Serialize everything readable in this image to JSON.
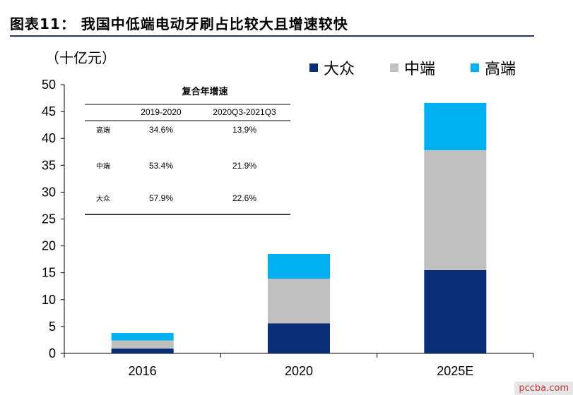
{
  "title": "图表11：  我国中低端电动牙刷占比较大且增速较快",
  "unit_label": "（十亿元）",
  "legend": [
    {
      "label": "大众",
      "color": "#0a2e78"
    },
    {
      "label": "中端",
      "color": "#c0c0c0"
    },
    {
      "label": "高端",
      "color": "#00b0f0"
    }
  ],
  "growth_table": {
    "title": "复合年增速",
    "columns": [
      "2019-2020",
      "2020Q3-2021Q3"
    ],
    "rows": [
      {
        "label": "高端",
        "values": [
          "34.6%",
          "13.9%"
        ]
      },
      {
        "label": "中端",
        "values": [
          "53.4%",
          "21.9%"
        ]
      },
      {
        "label": "大众",
        "values": [
          "57.9%",
          "22.6%"
        ]
      }
    ]
  },
  "chart_data": {
    "type": "bar",
    "stacked": true,
    "categories": [
      "2016",
      "2020",
      "2025E"
    ],
    "series": [
      {
        "name": "大众",
        "values": [
          0.9,
          5.6,
          15.5
        ],
        "color": "#0a2e78"
      },
      {
        "name": "中端",
        "values": [
          1.5,
          8.3,
          22.3
        ],
        "color": "#c0c0c0"
      },
      {
        "name": "高端",
        "values": [
          1.4,
          4.6,
          8.8
        ],
        "color": "#00b0f0"
      }
    ],
    "ylim": [
      0,
      50
    ],
    "yticks": [
      0,
      5,
      10,
      15,
      20,
      25,
      30,
      35,
      40,
      45,
      50
    ],
    "ylabel": "（十亿元）",
    "xlabel": "",
    "grid": false,
    "legend_position": "top-right"
  },
  "watermark": "pccba.com"
}
